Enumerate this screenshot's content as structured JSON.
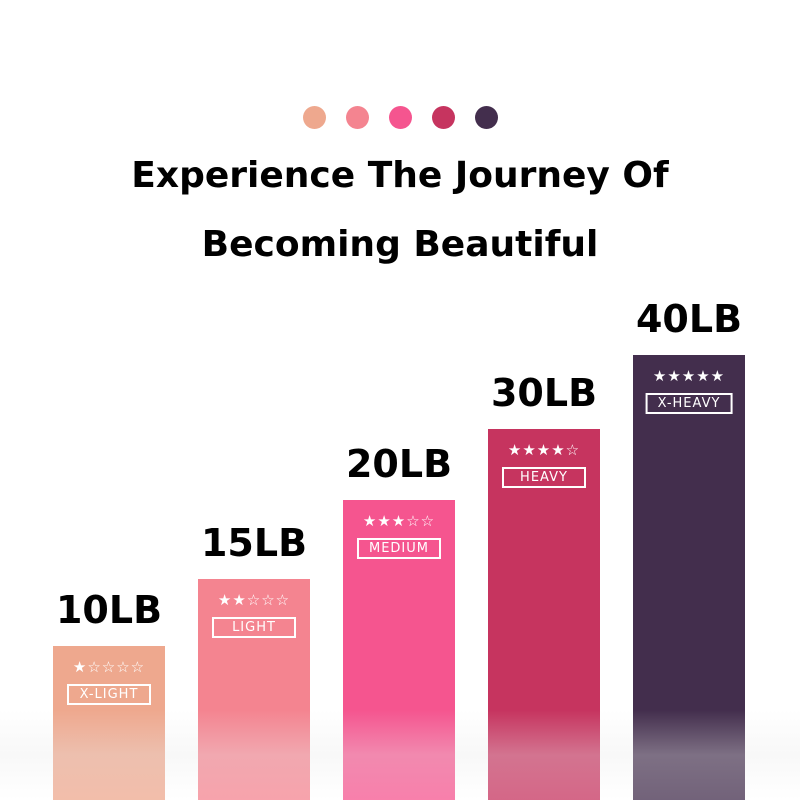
{
  "colors": [
    "#eea88e",
    "#f48490",
    "#f5558f",
    "#c6345f",
    "#432e4d"
  ],
  "title_line1": "Experience The Journey Of",
  "title_line2": "Becoming Beautiful",
  "bands": [
    {
      "weight": "10LB",
      "stars": "★☆☆☆☆",
      "rating": 1,
      "level": "X-LIGHT",
      "color": "#eea88e"
    },
    {
      "weight": "15LB",
      "stars": "★★☆☆☆",
      "rating": 2,
      "level": "LIGHT",
      "color": "#f48490"
    },
    {
      "weight": "20LB",
      "stars": "★★★☆☆",
      "rating": 3,
      "level": "MEDIUM",
      "color": "#f5558f"
    },
    {
      "weight": "30LB",
      "stars": "★★★★☆",
      "rating": 4,
      "level": "HEAVY",
      "color": "#c6345f"
    },
    {
      "weight": "40LB",
      "stars": "★★★★★",
      "rating": 5,
      "level": "X-HEAVY",
      "color": "#432e4d"
    }
  ]
}
